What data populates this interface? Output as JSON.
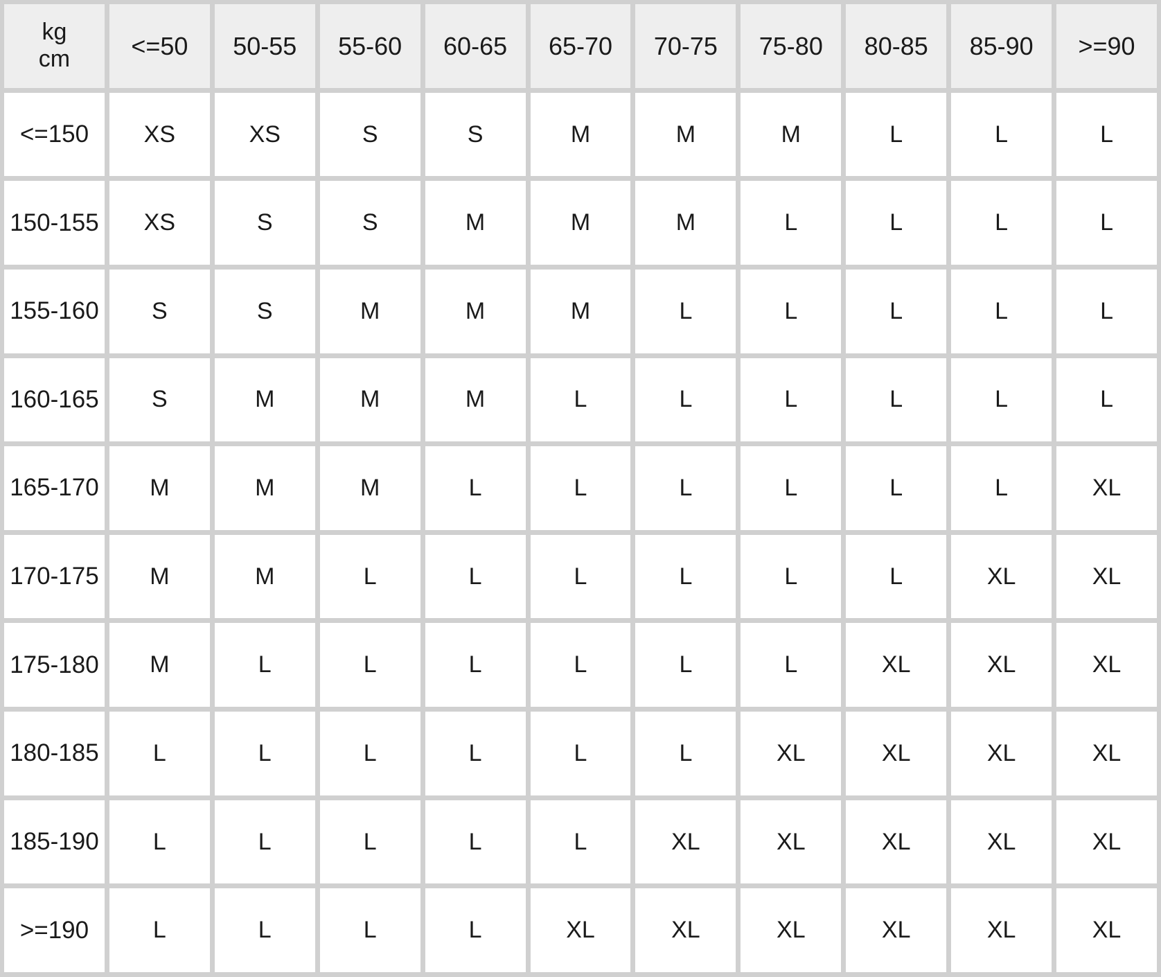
{
  "table": {
    "corner": {
      "top": "kg",
      "bottom": "cm"
    },
    "columns": [
      "<=50",
      "50-55",
      "55-60",
      "60-65",
      "65-70",
      "70-75",
      "75-80",
      "80-85",
      "85-90",
      ">=90"
    ],
    "rows": [
      {
        "label": "<=150",
        "cells": [
          "XS",
          "XS",
          "S",
          "S",
          "M",
          "M",
          "M",
          "L",
          "L",
          "L"
        ]
      },
      {
        "label": "150-155",
        "cells": [
          "XS",
          "S",
          "S",
          "M",
          "M",
          "M",
          "L",
          "L",
          "L",
          "L"
        ]
      },
      {
        "label": "155-160",
        "cells": [
          "S",
          "S",
          "M",
          "M",
          "M",
          "L",
          "L",
          "L",
          "L",
          "L"
        ]
      },
      {
        "label": "160-165",
        "cells": [
          "S",
          "M",
          "M",
          "M",
          "L",
          "L",
          "L",
          "L",
          "L",
          "L"
        ]
      },
      {
        "label": "165-170",
        "cells": [
          "M",
          "M",
          "M",
          "L",
          "L",
          "L",
          "L",
          "L",
          "L",
          "XL"
        ]
      },
      {
        "label": "170-175",
        "cells": [
          "M",
          "M",
          "L",
          "L",
          "L",
          "L",
          "L",
          "L",
          "XL",
          "XL"
        ]
      },
      {
        "label": "175-180",
        "cells": [
          "M",
          "L",
          "L",
          "L",
          "L",
          "L",
          "L",
          "XL",
          "XL",
          "XL"
        ]
      },
      {
        "label": "180-185",
        "cells": [
          "L",
          "L",
          "L",
          "L",
          "L",
          "L",
          "XL",
          "XL",
          "XL",
          "XL"
        ]
      },
      {
        "label": "185-190",
        "cells": [
          "L",
          "L",
          "L",
          "L",
          "L",
          "XL",
          "XL",
          "XL",
          "XL",
          "XL"
        ]
      },
      {
        "label": ">=190",
        "cells": [
          "L",
          "L",
          "L",
          "L",
          "XL",
          "XL",
          "XL",
          "XL",
          "XL",
          "XL"
        ]
      }
    ]
  },
  "colors": {
    "grid_border": "#d0d0d0",
    "header_bg": "#eeeeee",
    "cell_bg": "#ffffff",
    "text": "#1a1a1a"
  }
}
